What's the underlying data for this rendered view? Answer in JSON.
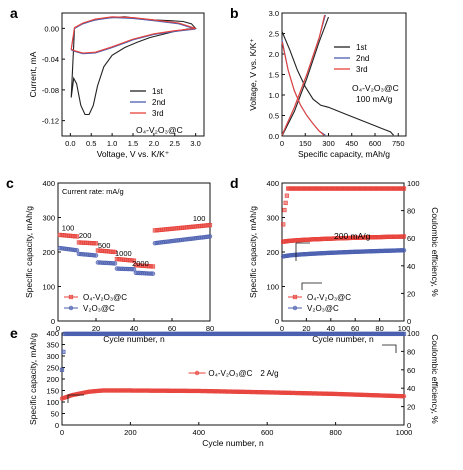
{
  "figure": {
    "panels": [
      {
        "id": "a",
        "panel_label": "a",
        "type": "line",
        "xlabel": "Voltage, V vs. K/K⁺",
        "ylabel": "Current, mA",
        "xlim": [
          -0.2,
          3.2
        ],
        "ylim": [
          -0.14,
          0.02
        ],
        "xticks": [
          "0.0",
          "0.5",
          "1.0",
          "1.5",
          "2.0",
          "2.5",
          "3.0"
        ],
        "yticks": [
          "0.00",
          "-0.04",
          "-0.08",
          "-0.12"
        ],
        "annotation": "O₄-V₂O₃@C",
        "legend": [
          "1st",
          "2nd",
          "3rd"
        ],
        "colors": [
          "#222222",
          "#4a5fb0",
          "#e8413a"
        ],
        "series": [
          {
            "name": "1st",
            "x": [
              0.02,
              0.08,
              0.15,
              0.25,
              0.35,
              0.45,
              0.55,
              0.65,
              0.8,
              1.0,
              1.3,
              1.6,
              1.9,
              2.2,
              2.5,
              2.8,
              3.0,
              2.9,
              2.7,
              2.4,
              2.0,
              1.6,
              1.3,
              1.0,
              0.7,
              0.45,
              0.25,
              0.1,
              0.02
            ],
            "y": [
              -0.09,
              -0.065,
              -0.072,
              -0.1,
              -0.112,
              -0.112,
              -0.1,
              -0.075,
              -0.05,
              -0.035,
              -0.025,
              -0.018,
              -0.012,
              -0.008,
              -0.004,
              -0.001,
              0.0,
              0.006,
              0.009,
              0.01,
              0.011,
              0.013,
              0.015,
              0.014,
              0.012,
              0.009,
              0.005,
              0.0,
              -0.09
            ]
          },
          {
            "name": "2nd",
            "x": [
              0.02,
              0.1,
              0.3,
              0.6,
              1.0,
              1.5,
              2.0,
              2.5,
              3.0,
              2.6,
              2.0,
              1.5,
              1.0,
              0.6,
              0.3,
              0.1,
              0.02
            ],
            "y": [
              -0.028,
              -0.03,
              -0.033,
              -0.032,
              -0.025,
              -0.015,
              -0.008,
              -0.004,
              -0.001,
              0.006,
              0.01,
              0.013,
              0.014,
              0.011,
              0.006,
              0.0,
              -0.028
            ]
          },
          {
            "name": "3rd",
            "x": [
              0.02,
              0.1,
              0.3,
              0.6,
              1.0,
              1.5,
              2.0,
              2.5,
              3.0,
              2.6,
              2.0,
              1.5,
              1.0,
              0.6,
              0.3,
              0.1,
              0.02
            ],
            "y": [
              -0.027,
              -0.029,
              -0.032,
              -0.031,
              -0.024,
              -0.014,
              -0.007,
              -0.003,
              0.0,
              0.007,
              0.011,
              0.014,
              0.015,
              0.012,
              0.007,
              0.001,
              -0.027
            ]
          }
        ]
      },
      {
        "id": "b",
        "panel_label": "b",
        "type": "line",
        "xlabel": "Specific capacity, mAh/g",
        "ylabel": "Voltage, V vs. K/K⁺",
        "xlim": [
          0,
          800
        ],
        "ylim": [
          0,
          3
        ],
        "xticks": [
          "0",
          "150",
          "300",
          "450",
          "600",
          "750"
        ],
        "yticks": [
          "0.0",
          "0.5",
          "1.0",
          "1.5",
          "2.0",
          "2.5",
          "3.0"
        ],
        "annotation": "O₄-V₂O₃@C",
        "annotation2": "100 mA/g",
        "legend": [
          "1st",
          "2nd",
          "3rd"
        ],
        "colors": [
          "#222222",
          "#4a5fb0",
          "#e8413a"
        ],
        "series": [
          {
            "name": "1st",
            "x": [
              0,
              50,
              100,
              150,
              200,
              250,
              300,
              400,
              500,
              600,
              700,
              720,
              0,
              80,
              160,
              240,
              300
            ],
            "y": [
              2.55,
              2.1,
              1.6,
              1.2,
              0.9,
              0.75,
              0.7,
              0.55,
              0.4,
              0.25,
              0.1,
              0.02,
              0.0,
              0.6,
              1.4,
              2.3,
              2.9
            ]
          },
          {
            "name": "2nd",
            "x": [
              0,
              40,
              80,
              120,
              160,
              200,
              240,
              280,
              0,
              80,
              160,
              240,
              280
            ],
            "y": [
              2.35,
              1.6,
              1.1,
              0.75,
              0.5,
              0.3,
              0.12,
              0.02,
              0.02,
              0.7,
              1.5,
              2.4,
              2.95
            ]
          },
          {
            "name": "3rd",
            "x": [
              0,
              40,
              80,
              120,
              160,
              200,
              240,
              270,
              0,
              80,
              160,
              240,
              275
            ],
            "y": [
              2.3,
              1.6,
              1.1,
              0.75,
              0.5,
              0.3,
              0.12,
              0.02,
              0.02,
              0.7,
              1.5,
              2.4,
              2.95
            ]
          }
        ]
      },
      {
        "id": "c",
        "panel_label": "c",
        "type": "scatter",
        "xlabel": "Cycle number, n",
        "ylabel": "Specific capacity, mAh/g",
        "xlim": [
          0,
          80
        ],
        "ylim": [
          0,
          400
        ],
        "xticks": [
          "0",
          "20",
          "40",
          "60",
          "80"
        ],
        "yticks": [
          "0",
          "100",
          "200",
          "300",
          "400"
        ],
        "rate_title": "Current rate: mA/g",
        "rate_labels": [
          {
            "text": "100",
            "x": 2,
            "y": 262
          },
          {
            "text": "200",
            "x": 11,
            "y": 240
          },
          {
            "text": "500",
            "x": 21,
            "y": 212
          },
          {
            "text": "1000",
            "x": 30,
            "y": 188
          },
          {
            "text": "2000",
            "x": 39,
            "y": 160
          },
          {
            "text": "100",
            "x": 71,
            "y": 290
          }
        ],
        "legend": [
          "O₄-V₂O₃@C",
          "V₂O₃@C"
        ],
        "colors": [
          "#e8413a",
          "#4a5fb0"
        ],
        "series": [
          {
            "name": "O₄-V₂O₃@C",
            "segments": [
              [
                0,
                10,
                250,
                245
              ],
              [
                10,
                20,
                228,
                225
              ],
              [
                20,
                30,
                205,
                200
              ],
              [
                30,
                40,
                180,
                175
              ],
              [
                40,
                50,
                162,
                158
              ],
              [
                50,
                80,
                262,
                278
              ]
            ]
          },
          {
            "name": "V₂O₃@C",
            "segments": [
              [
                0,
                10,
                212,
                205
              ],
              [
                10,
                20,
                195,
                190
              ],
              [
                20,
                30,
                170,
                167
              ],
              [
                30,
                40,
                152,
                150
              ],
              [
                40,
                50,
                140,
                137
              ],
              [
                50,
                80,
                225,
                245
              ]
            ]
          }
        ]
      },
      {
        "id": "d",
        "panel_label": "d",
        "type": "scatter",
        "xlabel": "Cycle number, n",
        "ylabel": "Specific capacity, mAh/g",
        "ylabel_right": "Coulombic efficiency, %",
        "xlim": [
          0,
          100
        ],
        "ylim": [
          0,
          400
        ],
        "ylim_right": [
          0,
          100
        ],
        "xticks": [
          "0",
          "20",
          "40",
          "60",
          "80",
          "100"
        ],
        "yticks": [
          "0",
          "100",
          "200",
          "300",
          "400"
        ],
        "yticks_right": [
          "0",
          "20",
          "40",
          "60",
          "80",
          "100"
        ],
        "annotation": "200 mA/g",
        "legend": [
          "O₄-V₂O₃@C",
          "V₂O₃@C"
        ],
        "colors": [
          "#e8413a",
          "#4a5fb0"
        ],
        "capacity_series": [
          {
            "name": "O₄-V₂O₃@C",
            "start": 228,
            "end": 245
          },
          {
            "name": "V₂O₃@C",
            "start": 185,
            "end": 205
          }
        ],
        "ce_series": {
          "first": 70,
          "value": 96
        }
      },
      {
        "id": "e",
        "panel_label": "e",
        "type": "scatter",
        "xlabel": "Cycle number, n",
        "ylabel": "Specific capacity, mAh/g",
        "ylabel_right": "Coulombic efficiency, %",
        "xlim": [
          0,
          1000
        ],
        "ylim": [
          0,
          400
        ],
        "ylim_right": [
          0,
          100
        ],
        "xticks": [
          "0",
          "200",
          "400",
          "600",
          "800",
          "1000"
        ],
        "yticks": [
          "0",
          "50",
          "100",
          "150",
          "200",
          "250",
          "300",
          "350",
          "400"
        ],
        "yticks_right": [
          "0",
          "20",
          "40",
          "60",
          "80",
          "100"
        ],
        "annotation": "2 A/g",
        "legend": [
          "O₄-V₂O₃@C"
        ],
        "colors": [
          "#e8413a",
          "#4a5fb0"
        ],
        "capacity_curve": [
          [
            0,
            115
          ],
          [
            30,
            130
          ],
          [
            80,
            145
          ],
          [
            120,
            150
          ],
          [
            200,
            150
          ],
          [
            400,
            148
          ],
          [
            600,
            142
          ],
          [
            800,
            135
          ],
          [
            1000,
            125
          ]
        ],
        "ce_series": {
          "first": 60,
          "value": 99
        }
      }
    ]
  }
}
